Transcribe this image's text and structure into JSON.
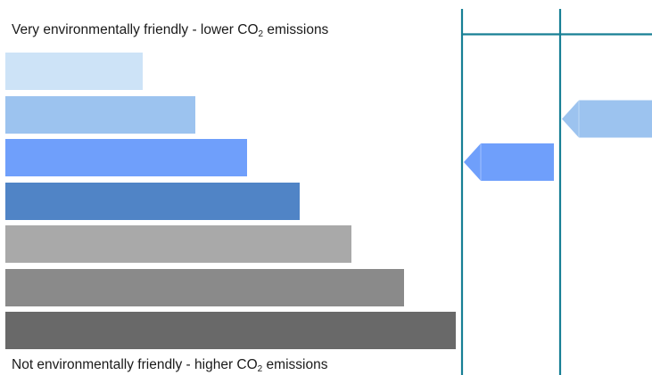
{
  "label": {
    "top": {
      "before": "Very environmentally friendly - lower CO",
      "subscript": "2",
      "after": " emissions"
    },
    "bottom": {
      "before": "Not environmentally friendly - higher CO",
      "subscript": "2",
      "after": " emissions"
    }
  },
  "bands": [
    {
      "level": 1,
      "color": "#cde3f7"
    },
    {
      "level": 2,
      "color": "#9cc3ef"
    },
    {
      "level": 3,
      "color": "#6f9ffb"
    },
    {
      "level": 4,
      "color": "#5084c6"
    },
    {
      "level": 5,
      "color": "#a9a9a9"
    },
    {
      "level": 6,
      "color": "#8a8a8a"
    },
    {
      "level": 7,
      "color": "#696969"
    }
  ],
  "pointers": [
    {
      "column": 1,
      "band": 3,
      "color": "#6f9ffb"
    },
    {
      "column": 2,
      "band": 2,
      "color": "#9cc3ef"
    }
  ],
  "colors": {
    "frame": "#177f95"
  }
}
